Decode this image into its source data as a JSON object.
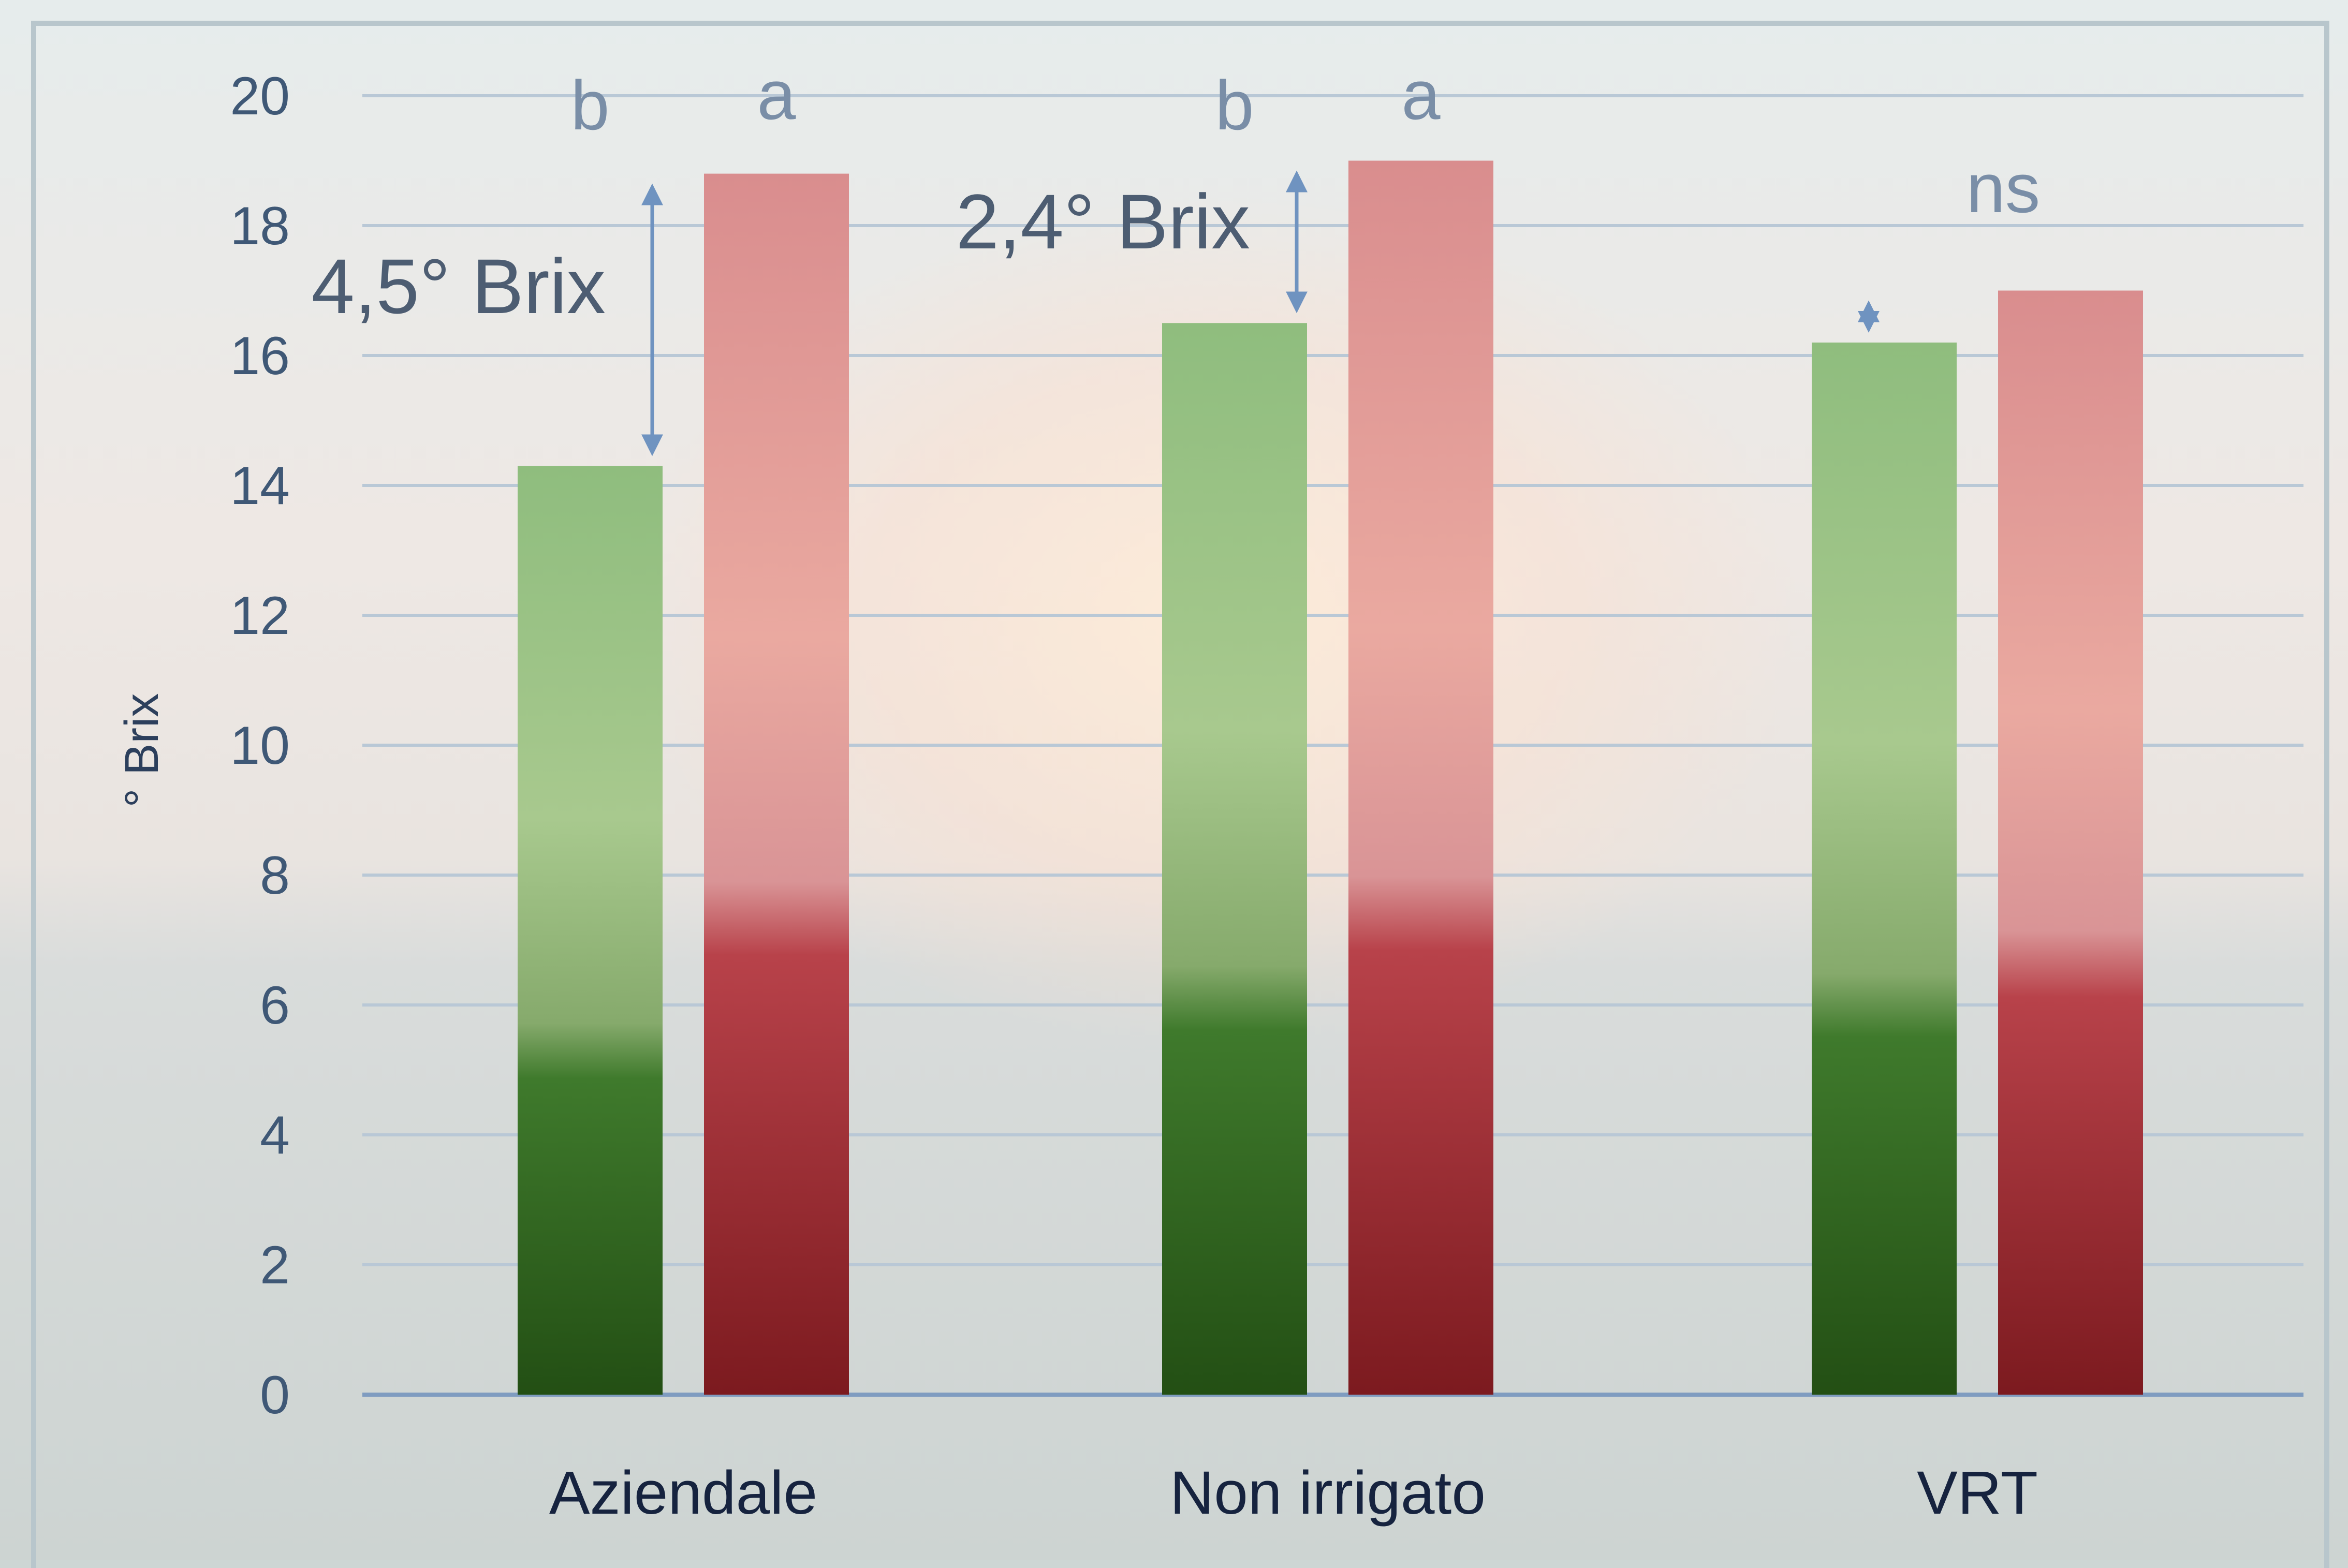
{
  "chart_data": {
    "type": "bar",
    "title": "",
    "xlabel": "",
    "ylabel": "° Brix",
    "ylim": [
      0,
      20
    ],
    "yticks": [
      0,
      2,
      4,
      6,
      8,
      10,
      12,
      14,
      16,
      18,
      20
    ],
    "grid": true,
    "legend": "none",
    "categories": [
      "Aziendale",
      "Non irrigato",
      "VRT"
    ],
    "series": [
      {
        "values": [
          14.3,
          16.5,
          16.2
        ],
        "color": "#3f7a2c"
      },
      {
        "values": [
          18.8,
          19.0,
          17.0
        ],
        "color": "#b8424a"
      }
    ],
    "significance": [
      {
        "category": "Aziendale",
        "letters": [
          "b",
          "a"
        ]
      },
      {
        "category": "Non irrigato",
        "letters": [
          "b",
          "a"
        ]
      },
      {
        "category": "VRT",
        "label": "ns"
      }
    ],
    "differences": [
      {
        "category": "Aziendale",
        "label": "4,5° Brix"
      },
      {
        "category": "Non irrigato",
        "label": "2,4° Brix"
      },
      {
        "category": "VRT",
        "label": ""
      }
    ]
  }
}
